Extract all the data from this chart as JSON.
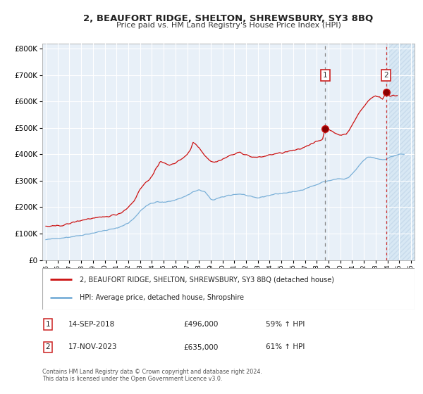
{
  "title1": "2, BEAUFORT RIDGE, SHELTON, SHREWSBURY, SY3 8BQ",
  "title2": "Price paid vs. HM Land Registry's House Price Index (HPI)",
  "legend_line1": "2, BEAUFORT RIDGE, SHELTON, SHREWSBURY, SY3 8BQ (detached house)",
  "legend_line2": "HPI: Average price, detached house, Shropshire",
  "marker1_date": "14-SEP-2018",
  "marker1_price": "£496,000",
  "marker1_pct": "59% ↑ HPI",
  "marker2_date": "17-NOV-2023",
  "marker2_price": "£635,000",
  "marker2_pct": "61% ↑ HPI",
  "sale1_year": 2018.71,
  "sale1_value": 496000,
  "sale2_year": 2023.88,
  "sale2_value": 635000,
  "vline1_year": 2018.71,
  "vline2_year": 2023.88,
  "footer": "Contains HM Land Registry data © Crown copyright and database right 2024.\nThis data is licensed under the Open Government Licence v3.0.",
  "background_color": "#ffffff",
  "plot_bg_color": "#e8f0f8",
  "shade_color": "#d8e8f4",
  "grid_color": "#ffffff",
  "line1_color": "#cc1111",
  "line2_color": "#7ab0d8",
  "ylim": [
    0,
    820000
  ],
  "xlim_start": 1994.7,
  "xlim_end": 2026.3
}
